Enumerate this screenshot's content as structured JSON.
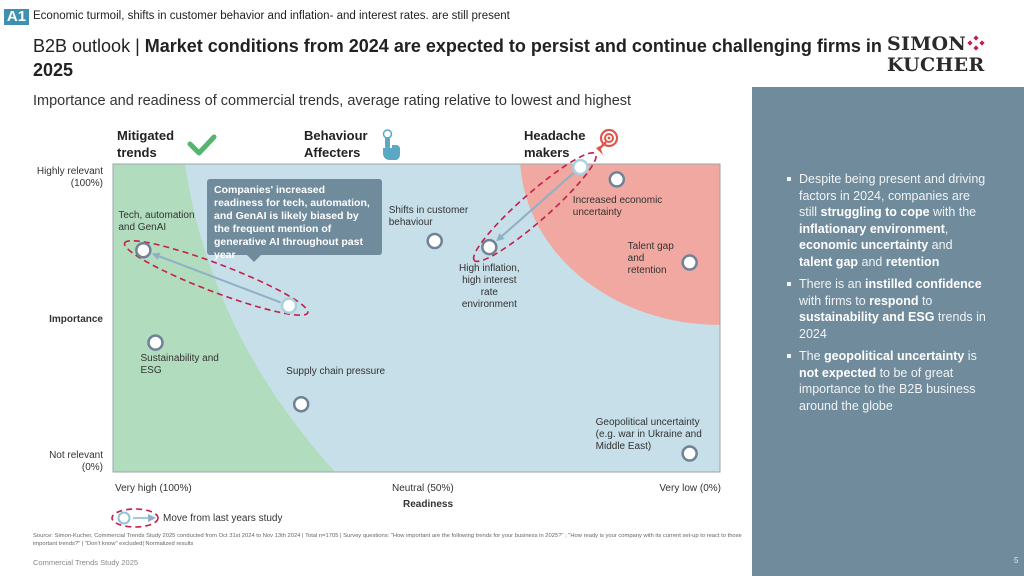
{
  "header": {
    "badge": "A1",
    "tracker": "Economic turmoil, shifts in customer behavior and inflation- and interest rates. are still present",
    "title_prefix": "B2B outlook | ",
    "title_bold": "Market conditions from 2024 are expected to persist and continue challenging firms in 2025",
    "logo_line1": "SIMON",
    "logo_line2": "KUCHER",
    "logo_color": "#c41f4c"
  },
  "subtitle": "Importance and readiness of commercial trends, average rating relative to lowest and highest",
  "categories": [
    {
      "label_line1": "Mitigated",
      "label_line2": "trends",
      "icon": "check-icon",
      "color": "#55b46e"
    },
    {
      "label_line1": "Behaviour",
      "label_line2": "Affecters",
      "icon": "pointing-hand-icon",
      "color": "#5aa8c4"
    },
    {
      "label_line1": "Headache",
      "label_line2": "makers",
      "icon": "target-icon",
      "color": "#e0574a"
    }
  ],
  "callout": "Companies' increased readiness for tech, automation, and GenAI is likely biased by the frequent mention of generative AI throughout past year",
  "legend": {
    "move_label": "Move from last years study"
  },
  "chart_data": {
    "type": "scatter",
    "title": "Importance and readiness of commercial trends, average rating relative to lowest and highest",
    "xlabel": "Readiness",
    "ylabel": "Importance",
    "x_reversed": true,
    "xlim": [
      100,
      0
    ],
    "ylim": [
      0,
      100
    ],
    "x_ticks": [
      "Very high (100%)",
      "Neutral (50%)",
      "Very low (0%)"
    ],
    "y_ticks": [
      {
        "line1": "Highly relevant",
        "line2": "(100%)"
      },
      {
        "line1": "Not relevant",
        "line2": "(0%)"
      }
    ],
    "grid": false,
    "zones": [
      {
        "name": "Mitigated trends",
        "color": "#b1dcbd"
      },
      {
        "name": "Behaviour Affecters",
        "color": "#c6dfe8"
      },
      {
        "name": "Headache makers",
        "color": "#f0a8a0"
      }
    ],
    "points": [
      {
        "name": "Tech, automation and GenAI",
        "label_lines": [
          "Tech, automation",
          "and GenAI"
        ],
        "readiness": 95,
        "importance": 72,
        "previous": {
          "readiness": 71,
          "importance": 54
        }
      },
      {
        "name": "Shifts in customer behaviour",
        "label_lines": [
          "Shifts in customer",
          "behaviour"
        ],
        "readiness": 47,
        "importance": 75
      },
      {
        "name": "High inflation, high interest rate environment",
        "label_lines": [
          "High inflation,",
          "high interest",
          "rate",
          "environment"
        ],
        "readiness": 38,
        "importance": 73,
        "previous": {
          "readiness": 23,
          "importance": 99
        }
      },
      {
        "name": "Increased economic uncertainty",
        "label_lines": [
          "Increased economic",
          "uncertainty"
        ],
        "readiness": 17,
        "importance": 95
      },
      {
        "name": "Talent gap and retention",
        "label_lines": [
          "Talent gap",
          "and",
          "retention"
        ],
        "readiness": 5,
        "importance": 68
      },
      {
        "name": "Sustainability and ESG",
        "label_lines": [
          "Sustainability and",
          "ESG"
        ],
        "readiness": 93,
        "importance": 42
      },
      {
        "name": "Supply chain pressure",
        "label_lines": [
          "Supply chain pressure"
        ],
        "readiness": 69,
        "importance": 22
      },
      {
        "name": "Geopolitical uncertainty (e.g. war in Ukraine and Middle East)",
        "label_lines": [
          "Geopolitical uncertainty",
          "(e.g. war in Ukraine and",
          "Middle East)"
        ],
        "readiness": 5,
        "importance": 6
      }
    ]
  },
  "panel": {
    "bullets": [
      [
        {
          "t": "Despite being present and driving factors in 2024, companies are still "
        },
        {
          "t": "struggling to cope",
          "b": true
        },
        {
          "t": " with the "
        },
        {
          "t": "inflationary environment",
          "b": true
        },
        {
          "t": ", "
        },
        {
          "t": "economic uncertainty",
          "b": true
        },
        {
          "t": " and "
        },
        {
          "t": "talent gap",
          "b": true
        },
        {
          "t": " and "
        },
        {
          "t": "retention",
          "b": true
        }
      ],
      [
        {
          "t": "There is an "
        },
        {
          "t": "instilled confidence",
          "b": true
        },
        {
          "t": " with firms to "
        },
        {
          "t": "respond",
          "b": true
        },
        {
          "t": " to "
        },
        {
          "t": "sustainability and ESG",
          "b": true
        },
        {
          "t": " trends in 2024"
        }
      ],
      [
        {
          "t": "The "
        },
        {
          "t": "geopolitical uncertainty",
          "b": true
        },
        {
          "t": " is "
        },
        {
          "t": "not expected",
          "b": true
        },
        {
          "t": " to be of great importance to the B2B business around the globe"
        }
      ]
    ],
    "page_number": "5"
  },
  "source": "Source: Simon-Kucher, Commercial Trends Study 2025 conducted from Oct 31st 2024 to Nov 13th 2024 | Total n=1705 | Survey questions: \"How important are the following trends for your business in 2025?\" ; \"How ready is your company with its current set-up to react to those important trends?\" | \"Don't know\" excluded| Normalized results",
  "footer": "Commercial Trends Study 2025"
}
